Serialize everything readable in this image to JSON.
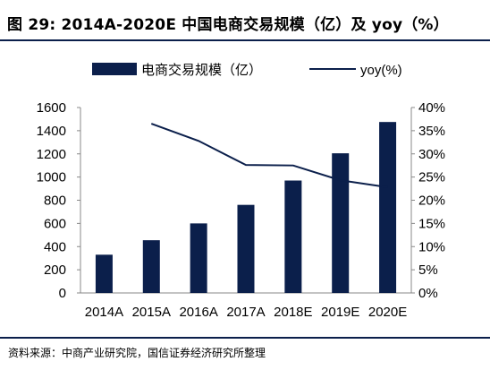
{
  "header": {
    "title": "图 29: 2014A-2020E 中国电商交易规模（亿）及 yoy（%）"
  },
  "footer": {
    "source": "资料来源：中商产业研究院，国信证券经济研究所整理"
  },
  "chart_data": {
    "type": "bar",
    "categories": [
      "2014A",
      "2015A",
      "2016A",
      "2017A",
      "2018E",
      "2019E",
      "2020E"
    ],
    "series": [
      {
        "name": "电商交易规模（亿）",
        "type": "bar",
        "axis": "left",
        "values": [
          330,
          455,
          600,
          760,
          970,
          1205,
          1475
        ]
      },
      {
        "name": "yoy(%)",
        "type": "line",
        "axis": "right",
        "values": [
          null,
          36.5,
          32.8,
          27.6,
          27.5,
          24.3,
          22.8
        ]
      }
    ],
    "y_left": {
      "range": [
        0,
        1600
      ],
      "ticks": [
        "0",
        "200",
        "400",
        "600",
        "800",
        "1000",
        "1200",
        "1400",
        "1600"
      ]
    },
    "y_right": {
      "range": [
        0,
        40
      ],
      "ticks": [
        "0%",
        "5%",
        "10%",
        "15%",
        "20%",
        "25%",
        "30%",
        "35%",
        "40%"
      ]
    },
    "grid": false,
    "legend_position": "top",
    "colors": {
      "bar": "#0b1f4b",
      "line": "#0b1f4b"
    }
  }
}
